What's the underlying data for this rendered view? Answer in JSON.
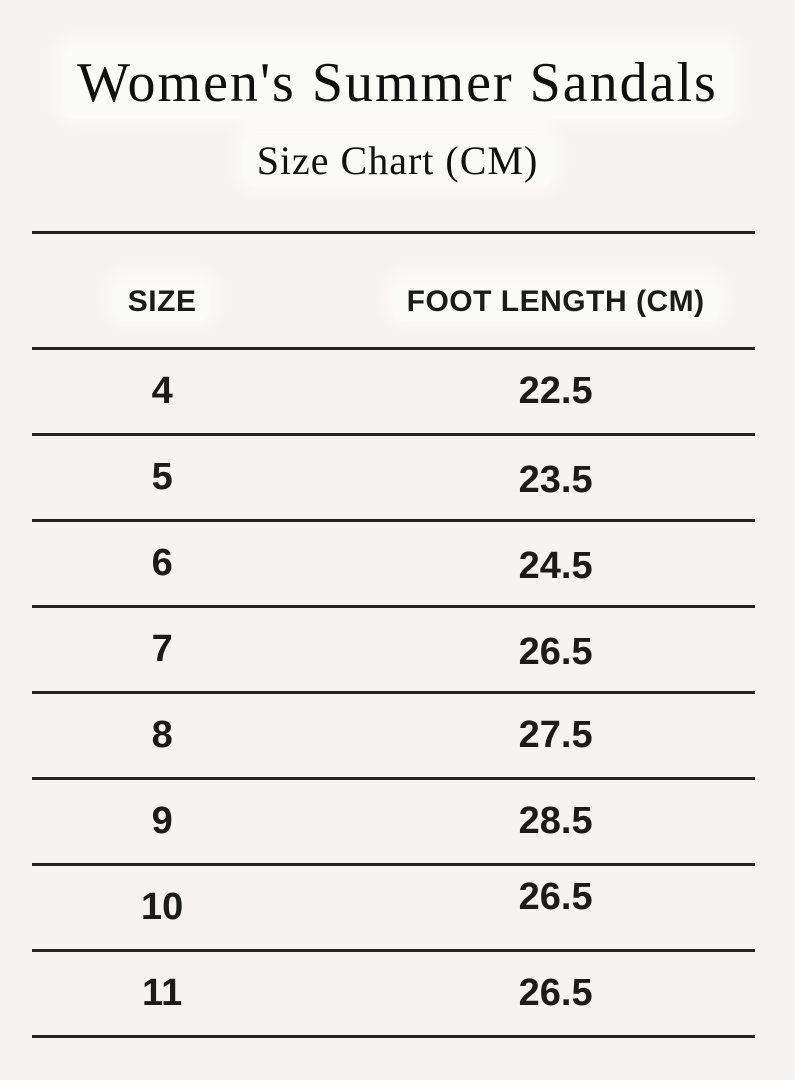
{
  "page": {
    "title": "Women's Summer Sandals",
    "subtitle": "Size Chart (CM)"
  },
  "table": {
    "headers": [
      "SIZE",
      "FOOT LENGTH (CM)"
    ],
    "rows": [
      {
        "size": "4",
        "foot_length_cm": "22.5"
      },
      {
        "size": "5",
        "foot_length_cm": "23.5"
      },
      {
        "size": "6",
        "foot_length_cm": "24.5"
      },
      {
        "size": "7",
        "foot_length_cm": "26.5"
      },
      {
        "size": "8",
        "foot_length_cm": "27.5"
      },
      {
        "size": "9",
        "foot_length_cm": "28.5"
      },
      {
        "size": "10",
        "foot_length_cm": "26.5"
      },
      {
        "size": "11",
        "foot_length_cm": "26.5"
      }
    ]
  },
  "colors": {
    "background": "#f5f4f2",
    "text": "#161616",
    "rule": "#242424"
  },
  "chart_data": {
    "type": "table",
    "title": "Women's Summer Sandals",
    "subtitle": "Size Chart (CM)",
    "columns": [
      "SIZE",
      "FOOT LENGTH (CM)"
    ],
    "rows": [
      [
        "4",
        "22.5"
      ],
      [
        "5",
        "23.5"
      ],
      [
        "6",
        "24.5"
      ],
      [
        "7",
        "26.5"
      ],
      [
        "8",
        "27.5"
      ],
      [
        "9",
        "28.5"
      ],
      [
        "10",
        "26.5"
      ],
      [
        "11",
        "26.5"
      ]
    ],
    "layout": {
      "grid": "horizontal-rules-only",
      "alignment": "center"
    }
  }
}
